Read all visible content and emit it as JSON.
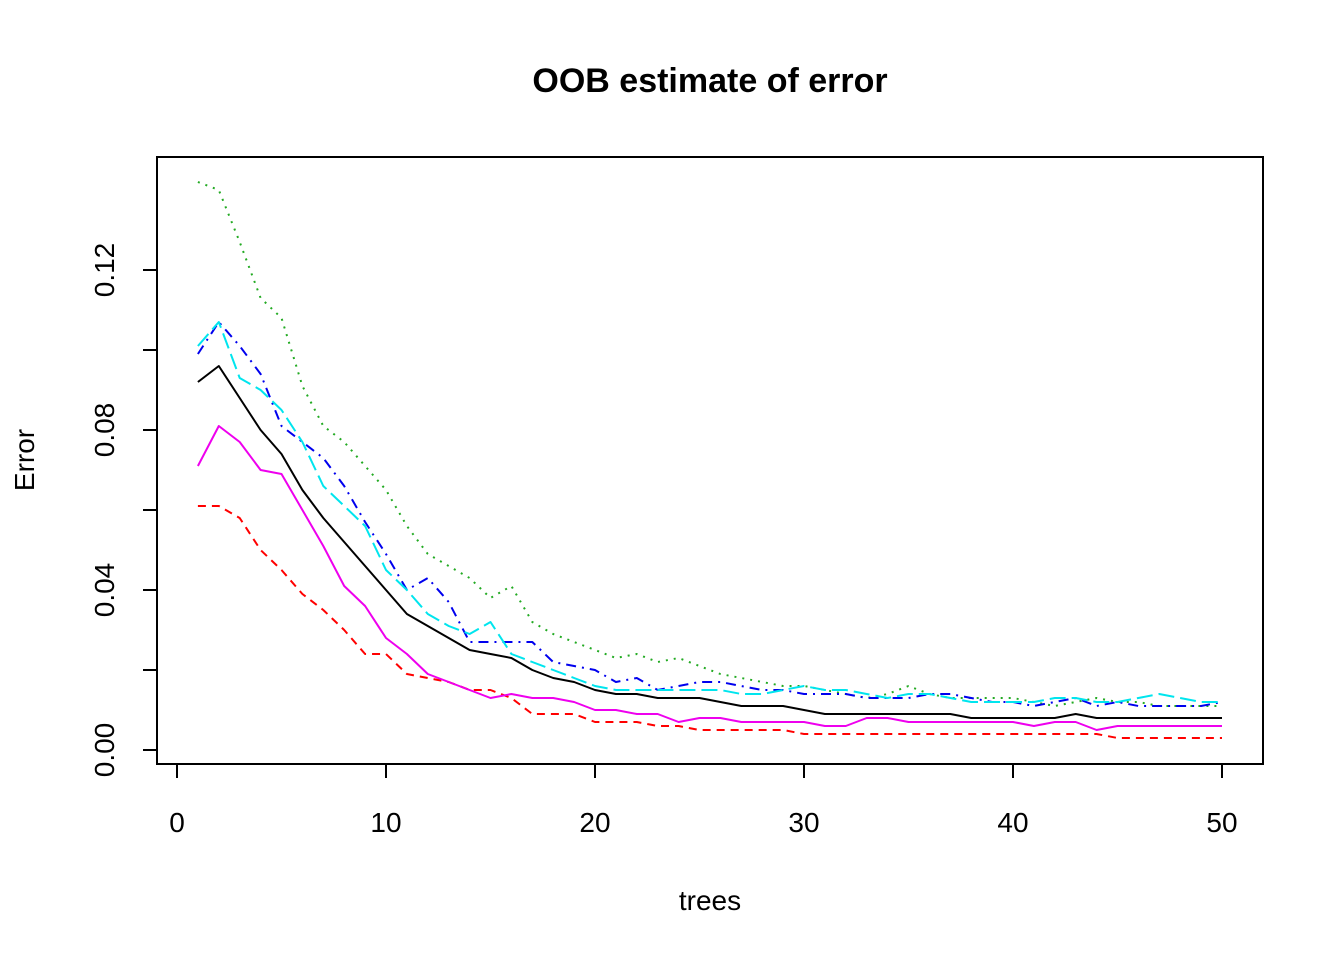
{
  "chart_data": {
    "type": "line",
    "title": "OOB estimate of error",
    "xlabel": "trees",
    "ylabel": "Error",
    "xlim": [
      0,
      50
    ],
    "ylim": [
      0,
      0.14
    ],
    "xticks": [
      0,
      10,
      20,
      30,
      40,
      50
    ],
    "xtick_labels": [
      "0",
      "10",
      "20",
      "30",
      "40",
      "50"
    ],
    "yticks": [
      0,
      0.02,
      0.04,
      0.06,
      0.08,
      0.1,
      0.12
    ],
    "ytick_labels": [
      "0.00",
      "",
      "0.04",
      "",
      "0.08",
      "",
      "0.12"
    ],
    "grid": false,
    "legend": "none",
    "x": [
      1,
      2,
      3,
      4,
      5,
      6,
      7,
      8,
      9,
      10,
      11,
      12,
      13,
      14,
      15,
      16,
      17,
      18,
      19,
      20,
      21,
      22,
      23,
      24,
      25,
      26,
      27,
      28,
      29,
      30,
      31,
      32,
      33,
      34,
      35,
      36,
      37,
      38,
      39,
      40,
      41,
      42,
      43,
      44,
      45,
      46,
      47,
      48,
      49,
      50
    ],
    "series": [
      {
        "color": "#000000",
        "dash": "",
        "values": [
          0.092,
          0.096,
          0.088,
          0.08,
          0.074,
          0.065,
          0.058,
          0.052,
          0.046,
          0.04,
          0.034,
          0.031,
          0.028,
          0.025,
          0.024,
          0.023,
          0.02,
          0.018,
          0.017,
          0.015,
          0.014,
          0.014,
          0.013,
          0.013,
          0.013,
          0.012,
          0.011,
          0.011,
          0.011,
          0.01,
          0.009,
          0.009,
          0.009,
          0.009,
          0.009,
          0.009,
          0.009,
          0.008,
          0.008,
          0.008,
          0.008,
          0.008,
          0.009,
          0.008,
          0.008,
          0.008,
          0.008,
          0.008,
          0.008,
          0.008
        ]
      },
      {
        "color": "#ff0000",
        "dash": "8,6",
        "values": [
          0.061,
          0.061,
          0.058,
          0.05,
          0.045,
          0.039,
          0.035,
          0.03,
          0.024,
          0.024,
          0.019,
          0.018,
          0.017,
          0.015,
          0.015,
          0.013,
          0.009,
          0.009,
          0.009,
          0.007,
          0.007,
          0.007,
          0.006,
          0.006,
          0.005,
          0.005,
          0.005,
          0.005,
          0.005,
          0.004,
          0.004,
          0.004,
          0.004,
          0.004,
          0.004,
          0.004,
          0.004,
          0.004,
          0.004,
          0.004,
          0.004,
          0.004,
          0.004,
          0.004,
          0.003,
          0.003,
          0.003,
          0.003,
          0.003,
          0.003
        ]
      },
      {
        "color": "#22aa22",
        "dash": "2,6",
        "values": [
          0.142,
          0.14,
          0.127,
          0.113,
          0.108,
          0.091,
          0.081,
          0.077,
          0.071,
          0.065,
          0.056,
          0.049,
          0.046,
          0.043,
          0.038,
          0.041,
          0.032,
          0.029,
          0.027,
          0.025,
          0.023,
          0.024,
          0.022,
          0.023,
          0.021,
          0.019,
          0.018,
          0.017,
          0.016,
          0.016,
          0.015,
          0.014,
          0.013,
          0.014,
          0.016,
          0.014,
          0.013,
          0.013,
          0.013,
          0.013,
          0.012,
          0.011,
          0.012,
          0.013,
          0.012,
          0.012,
          0.011,
          0.011,
          0.011,
          0.011
        ]
      },
      {
        "color": "#0000ee",
        "dash": "10,6,2,6",
        "values": [
          0.099,
          0.107,
          0.101,
          0.094,
          0.081,
          0.077,
          0.073,
          0.066,
          0.057,
          0.049,
          0.04,
          0.043,
          0.037,
          0.027,
          0.027,
          0.027,
          0.027,
          0.022,
          0.021,
          0.02,
          0.017,
          0.018,
          0.015,
          0.016,
          0.017,
          0.017,
          0.016,
          0.015,
          0.015,
          0.014,
          0.014,
          0.014,
          0.013,
          0.013,
          0.013,
          0.014,
          0.014,
          0.013,
          0.012,
          0.012,
          0.011,
          0.012,
          0.013,
          0.011,
          0.012,
          0.011,
          0.011,
          0.011,
          0.011,
          0.012
        ]
      },
      {
        "color": "#00e5ee",
        "dash": "16,6",
        "values": [
          0.101,
          0.107,
          0.093,
          0.09,
          0.085,
          0.077,
          0.066,
          0.061,
          0.056,
          0.045,
          0.04,
          0.034,
          0.031,
          0.029,
          0.032,
          0.024,
          0.022,
          0.02,
          0.018,
          0.016,
          0.015,
          0.015,
          0.015,
          0.015,
          0.015,
          0.015,
          0.014,
          0.014,
          0.015,
          0.016,
          0.015,
          0.015,
          0.014,
          0.013,
          0.014,
          0.014,
          0.013,
          0.012,
          0.012,
          0.012,
          0.012,
          0.013,
          0.013,
          0.012,
          0.012,
          0.013,
          0.014,
          0.013,
          0.012,
          0.012
        ]
      },
      {
        "color": "#ee00ee",
        "dash": "",
        "values": [
          0.071,
          0.081,
          0.077,
          0.07,
          0.069,
          0.06,
          0.051,
          0.041,
          0.036,
          0.028,
          0.024,
          0.019,
          0.017,
          0.015,
          0.013,
          0.014,
          0.013,
          0.013,
          0.012,
          0.01,
          0.01,
          0.009,
          0.009,
          0.007,
          0.008,
          0.008,
          0.007,
          0.007,
          0.007,
          0.007,
          0.006,
          0.006,
          0.008,
          0.008,
          0.007,
          0.007,
          0.007,
          0.007,
          0.007,
          0.007,
          0.006,
          0.007,
          0.007,
          0.005,
          0.006,
          0.006,
          0.006,
          0.006,
          0.006,
          0.006
        ]
      }
    ]
  }
}
